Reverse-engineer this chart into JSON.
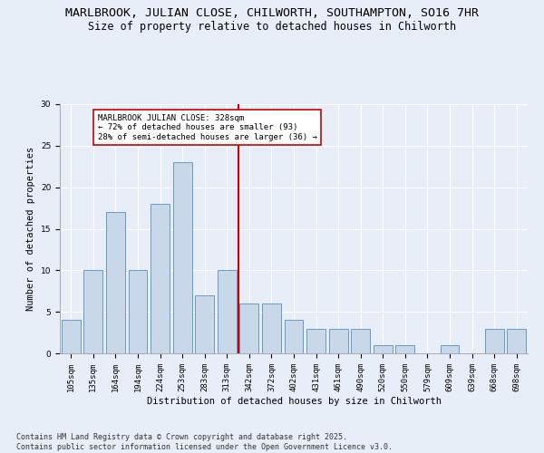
{
  "title_line1": "MARLBROOK, JULIAN CLOSE, CHILWORTH, SOUTHAMPTON, SO16 7HR",
  "title_line2": "Size of property relative to detached houses in Chilworth",
  "xlabel": "Distribution of detached houses by size in Chilworth",
  "ylabel": "Number of detached properties",
  "categories": [
    "105sqm",
    "135sqm",
    "164sqm",
    "194sqm",
    "224sqm",
    "253sqm",
    "283sqm",
    "313sqm",
    "342sqm",
    "372sqm",
    "402sqm",
    "431sqm",
    "461sqm",
    "490sqm",
    "520sqm",
    "550sqm",
    "579sqm",
    "609sqm",
    "639sqm",
    "668sqm",
    "698sqm"
  ],
  "values": [
    4,
    10,
    17,
    10,
    18,
    23,
    7,
    10,
    6,
    6,
    4,
    3,
    3,
    3,
    1,
    1,
    0,
    1,
    0,
    3,
    3
  ],
  "bar_color": "#c8d8e8",
  "bar_edge_color": "#6699cc",
  "vline_index": 8,
  "vline_color": "#cc0000",
  "annotation_title": "MARLBROOK JULIAN CLOSE: 328sqm",
  "annotation_line1": "← 72% of detached houses are smaller (93)",
  "annotation_line2": "28% of semi-detached houses are larger (36) →",
  "annotation_box_color": "#ffffff",
  "annotation_box_edge": "#cc0000",
  "ylim": [
    0,
    30
  ],
  "yticks": [
    0,
    5,
    10,
    15,
    20,
    25,
    30
  ],
  "footnote_line1": "Contains HM Land Registry data © Crown copyright and database right 2025.",
  "footnote_line2": "Contains public sector information licensed under the Open Government Licence v3.0.",
  "bg_color": "#e8eef8",
  "plot_bg_color": "#e8eef8",
  "title_fontsize": 9.5,
  "subtitle_fontsize": 8.5,
  "axis_label_fontsize": 7.5,
  "tick_fontsize": 6.5,
  "annotation_fontsize": 6.5,
  "footnote_fontsize": 6.0
}
